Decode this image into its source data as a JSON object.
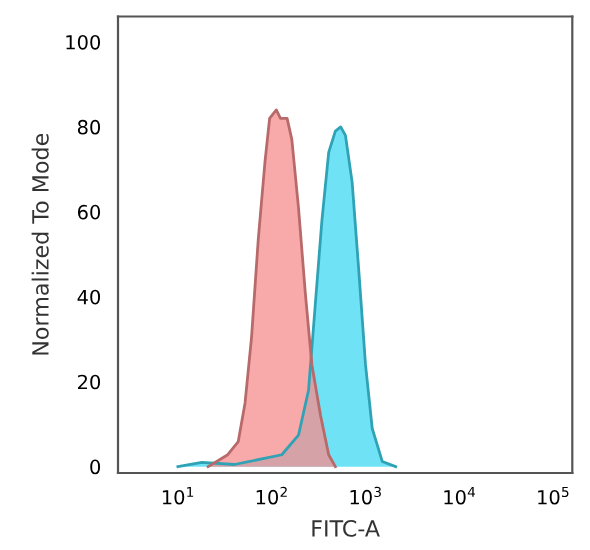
{
  "chart_data": {
    "type": "area",
    "xlabel": "FITC-A",
    "ylabel": "Normalized To Mode",
    "log": "x",
    "xlim": [
      2.3,
      160000
    ],
    "ylim": [
      -1.5,
      106
    ],
    "xticks": [
      {
        "value": 10,
        "label": "10$^{1}$"
      },
      {
        "value": 100,
        "label": "10$^{2}$"
      },
      {
        "value": 1000,
        "label": "10$^{3}$"
      },
      {
        "value": 10000,
        "label": "10$^{4}$"
      },
      {
        "value": 100000,
        "label": "10$^{5}$"
      }
    ],
    "yticks": [
      0,
      20,
      40,
      60,
      80,
      100
    ],
    "grid": false,
    "series": [
      {
        "color": "#3fd8f2",
        "x": [
          10,
          18,
          40,
          128,
          193,
          247,
          291,
          343,
          405,
          477,
          544,
          611,
          720,
          849,
          1000,
          1179,
          1510,
          2096
        ],
        "values": [
          0,
          1,
          0.5,
          2.8,
          7.4,
          18,
          38,
          58,
          74,
          79,
          80,
          78,
          67,
          46,
          24,
          9,
          1.2,
          0
        ]
      },
      {
        "color": "#f58c8c",
        "x": [
          21,
          34,
          44,
          52,
          61,
          72,
          85,
          95,
          112,
          124,
          146,
          164,
          193,
          228,
          268,
          332,
          405,
          477
        ],
        "values": [
          0,
          2.8,
          5.9,
          15,
          30.5,
          53.7,
          72,
          82,
          84,
          82,
          82,
          77,
          61,
          41,
          24,
          12,
          2.8,
          0
        ]
      }
    ]
  }
}
